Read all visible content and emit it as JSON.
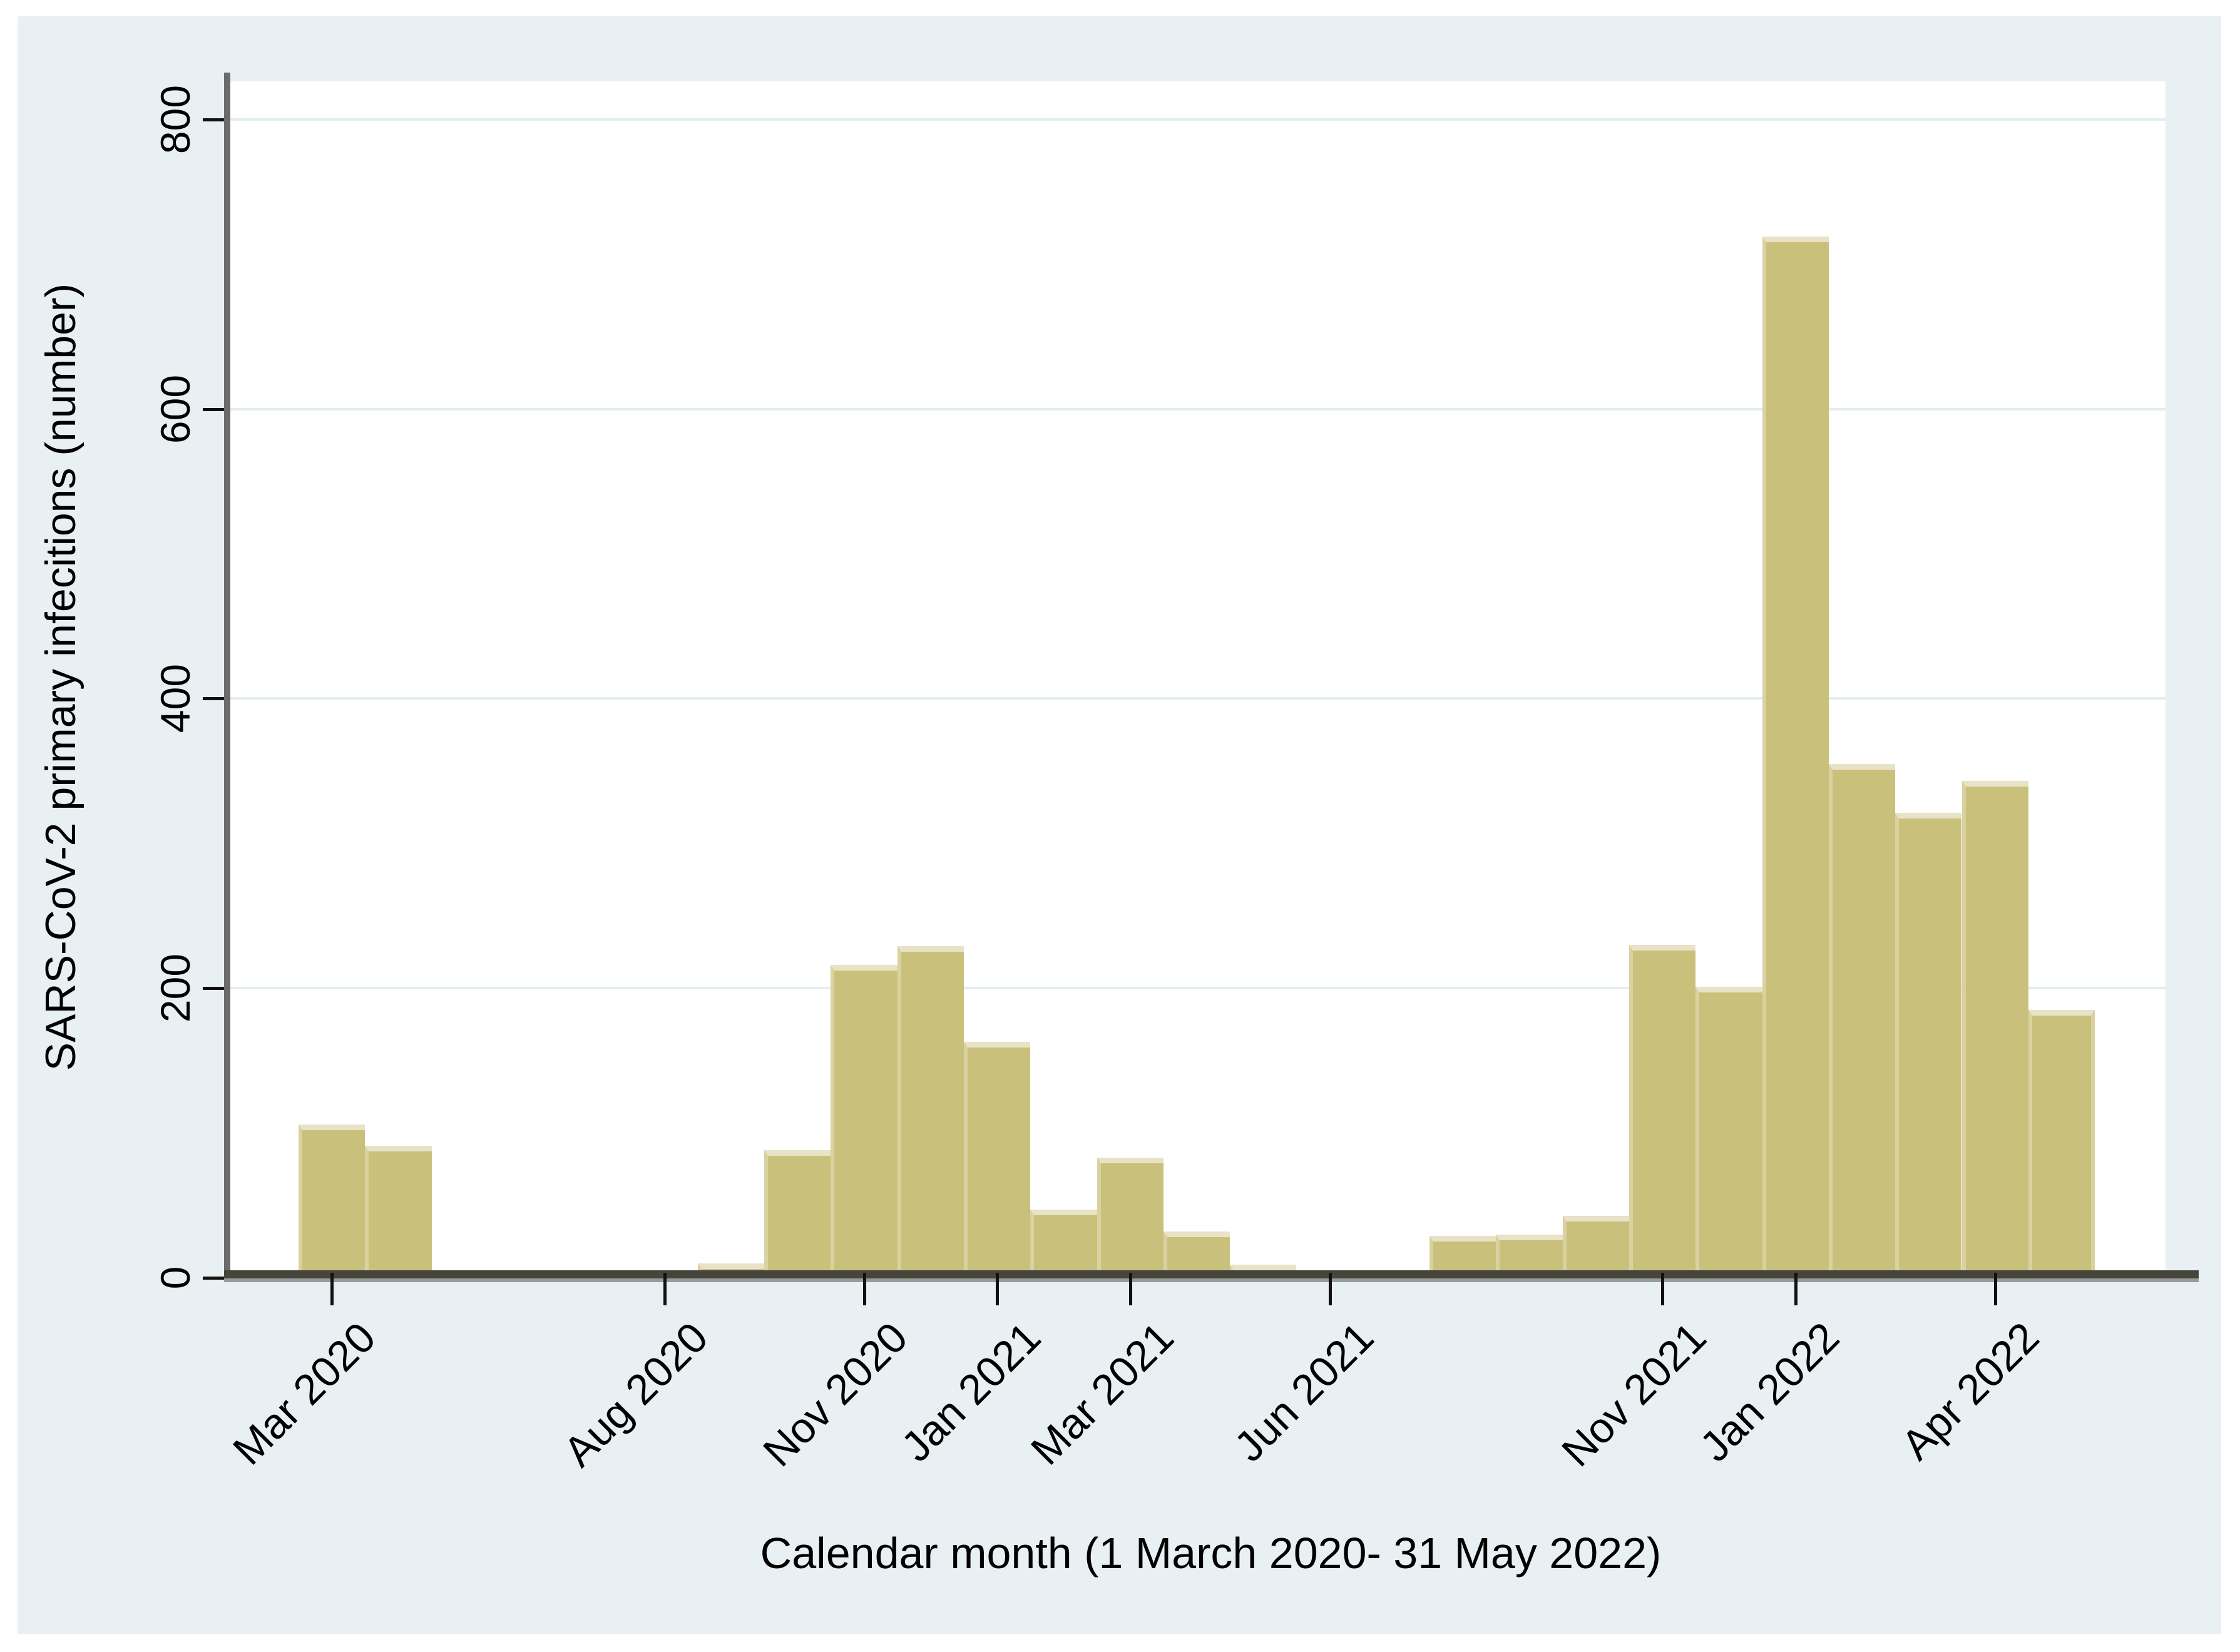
{
  "chart_data": {
    "type": "bar",
    "title": "",
    "xlabel": "Calendar month (1 March 2020- 31 May 2022)",
    "ylabel": "SARS-CoV-2 primary infecitions (number)",
    "ylim": [
      0,
      800
    ],
    "yticks": [
      0,
      200,
      400,
      600,
      800
    ],
    "grid": "horizontal gridlines at 200/400/600/800, white plot on pale blue figure background",
    "legend": "none",
    "categories": [
      "Mar 2020",
      "Apr 2020",
      "May 2020",
      "Jun 2020",
      "Jul 2020",
      "Aug 2020",
      "Sep 2020",
      "Oct 2020",
      "Nov 2020",
      "Dec 2020",
      "Jan 2021",
      "Feb 2021",
      "Mar 2021",
      "Apr 2021",
      "May 2021",
      "Jun 2021",
      "Jul 2021",
      "Aug 2021",
      "Sep 2021",
      "Oct 2021",
      "Nov 2021",
      "Dec 2021",
      "Jan 2022",
      "Feb 2022",
      "Mar 2022",
      "Apr 2022",
      "May 2022"
    ],
    "values": [
      106,
      91,
      0,
      2,
      0,
      5,
      10,
      88,
      216,
      229,
      163,
      47,
      83,
      32,
      9,
      0,
      4,
      29,
      30,
      43,
      230,
      201,
      719,
      355,
      321,
      343,
      185
    ],
    "labeled_x_ticks": [
      {
        "index": 0,
        "label": "Mar 2020"
      },
      {
        "index": 5,
        "label": "Aug 2020"
      },
      {
        "index": 8,
        "label": "Nov 2020"
      },
      {
        "index": 10,
        "label": "Jan 2021"
      },
      {
        "index": 12,
        "label": "Mar 2021"
      },
      {
        "index": 15,
        "label": "Jun 2021"
      },
      {
        "index": 20,
        "label": "Nov 2021"
      },
      {
        "index": 22,
        "label": "Jan 2022"
      },
      {
        "index": 25,
        "label": "Apr 2022"
      }
    ],
    "colors": {
      "bar_fill": "#c9c07c",
      "bar_edge_top": "#e8e3c6",
      "bar_edge_side": "#d9d2a0",
      "figure_background": "#e9f0f3",
      "plot_background": "#ffffff",
      "gridline": "#e2edf2",
      "axis_line": "#45453c",
      "tick": "#111111",
      "text": "#000000"
    }
  }
}
